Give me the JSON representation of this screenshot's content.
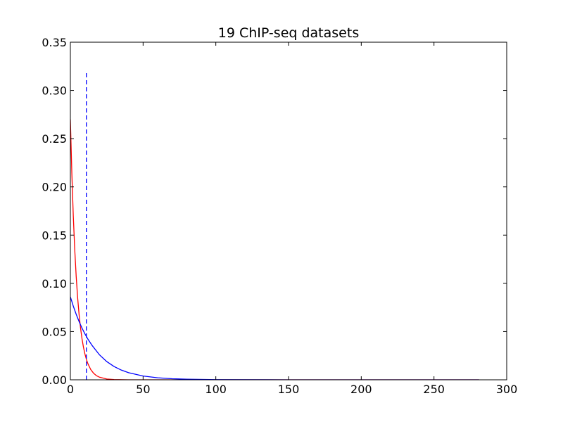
{
  "chart_data": {
    "type": "line",
    "title": "19 ChIP-seq datasets",
    "xlabel": "",
    "ylabel": "",
    "xlim": [
      0,
      300
    ],
    "ylim": [
      0,
      0.35
    ],
    "xticks": [
      0,
      50,
      100,
      150,
      200,
      250,
      300
    ],
    "yticks": [
      0.0,
      0.05,
      0.1,
      0.15,
      0.2,
      0.25,
      0.3,
      0.35
    ],
    "xtick_labels": [
      "0",
      "50",
      "100",
      "150",
      "200",
      "250",
      "300"
    ],
    "ytick_labels": [
      "0.00",
      "0.05",
      "0.10",
      "0.15",
      "0.20",
      "0.25",
      "0.30",
      "0.35"
    ],
    "grid": false,
    "legend": "none",
    "series": [
      {
        "color": "#ff0000",
        "style": "solid",
        "x": [
          0,
          1,
          2,
          3,
          4,
          5,
          6,
          7,
          8,
          9,
          10,
          11,
          12,
          14,
          16,
          18,
          20,
          25,
          30,
          40,
          60,
          100,
          150,
          200,
          250,
          281
        ],
        "y": [
          0.27,
          0.2143,
          0.1701,
          0.135,
          0.1071,
          0.085,
          0.0675,
          0.0536,
          0.0425,
          0.0337,
          0.0268,
          0.0213,
          0.0169,
          0.0106,
          0.0067,
          0.0042,
          0.0027,
          0.0008,
          0.0003,
          0.0,
          0.0,
          0.0,
          0.0,
          0.0,
          0.0,
          0.0
        ]
      },
      {
        "color": "#0000ff",
        "style": "solid",
        "x": [
          0,
          2,
          4,
          6,
          8,
          10,
          12,
          15,
          20,
          25,
          30,
          35,
          40,
          50,
          60,
          70,
          80,
          100,
          150,
          200,
          250,
          281
        ],
        "y": [
          0.086,
          0.0764,
          0.0679,
          0.0603,
          0.0536,
          0.0476,
          0.0423,
          0.0355,
          0.0259,
          0.0189,
          0.0138,
          0.0101,
          0.0074,
          0.0039,
          0.0021,
          0.0011,
          0.0006,
          0.0002,
          0.0,
          0.0,
          0.0,
          0.0
        ]
      },
      {
        "color": "#0000ff",
        "style": "dashed",
        "x": [
          11,
          11
        ],
        "y": [
          0.0,
          0.32
        ]
      }
    ]
  }
}
